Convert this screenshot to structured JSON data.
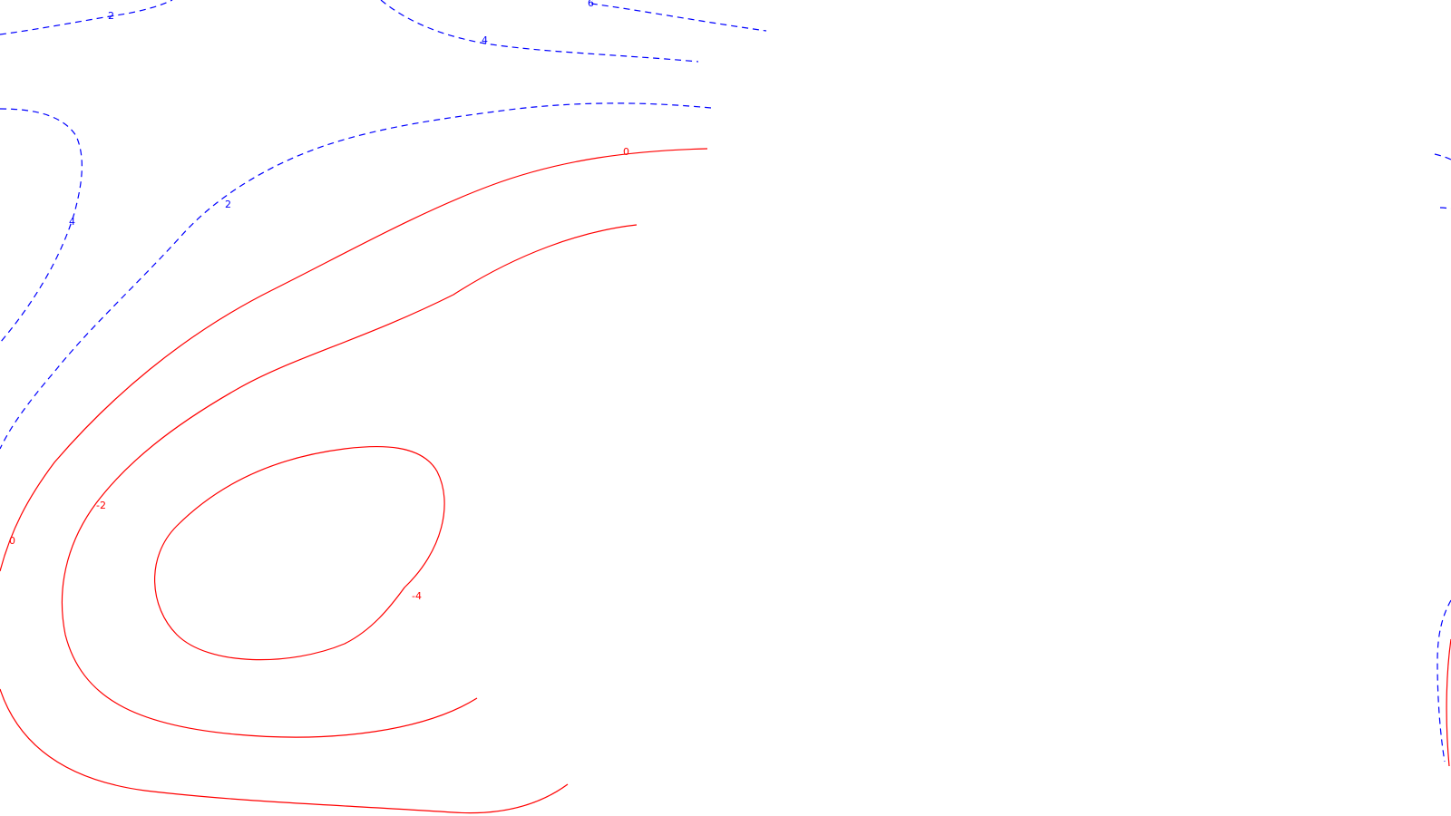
{
  "chart_data": {
    "type": "contour",
    "title": "",
    "xlabel": "",
    "ylabel": "",
    "grid": false,
    "legend": "none",
    "line_styles": {
      "positive": "dashed",
      "negative_and_zero": "solid"
    },
    "colors": {
      "positive": "#0000ff",
      "negative_and_zero": "#ff0000"
    },
    "levels_shown": [
      -4,
      -2,
      0,
      2,
      4,
      6
    ],
    "contour_labels": [
      {
        "id": "neg-4",
        "level": -4,
        "text": "-4"
      },
      {
        "id": "neg-2",
        "level": -2,
        "text": "-2"
      },
      {
        "id": "zero-left",
        "level": 0,
        "text": "0"
      },
      {
        "id": "zero-top",
        "level": 0,
        "text": "0"
      },
      {
        "id": "pos-2-mid",
        "level": 2,
        "text": "2"
      },
      {
        "id": "pos-2-top",
        "level": 2,
        "text": "2"
      },
      {
        "id": "pos-4-left",
        "level": 4,
        "text": "4"
      },
      {
        "id": "pos-4-top",
        "level": 4,
        "text": "4"
      },
      {
        "id": "pos-6-top",
        "level": 6,
        "text": "6"
      }
    ]
  }
}
